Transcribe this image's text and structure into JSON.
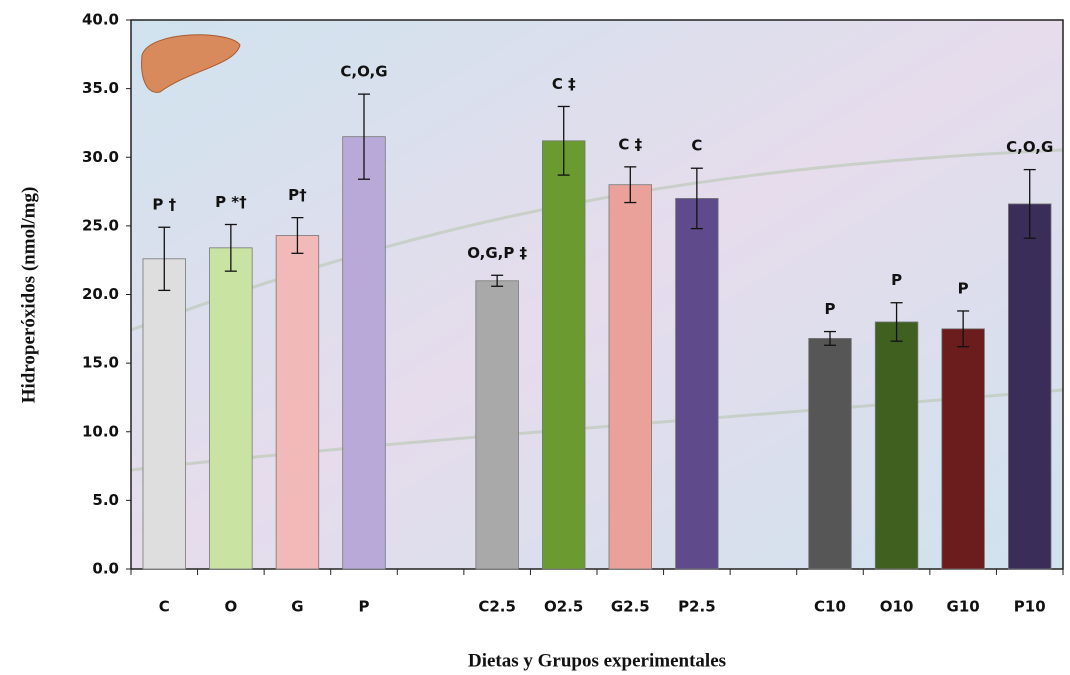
{
  "chart_data": {
    "type": "bar",
    "y_label": "Hidroperóxidos (nmol/mg)",
    "x_label": "Dietas y Grupos experimentales",
    "categories": [
      "C",
      "O",
      "G",
      "P",
      null,
      "C2.5",
      "O2.5",
      "G2.5",
      "P2.5",
      null,
      "C10",
      "O10",
      "G10",
      "P10"
    ],
    "values": [
      22.6,
      23.4,
      24.3,
      31.5,
      null,
      21.0,
      31.2,
      28.0,
      27.0,
      null,
      16.8,
      18.0,
      17.5,
      26.6
    ],
    "errors": [
      2.3,
      1.7,
      1.3,
      3.1,
      null,
      0.4,
      2.5,
      1.3,
      2.2,
      null,
      0.5,
      1.4,
      1.3,
      2.5
    ],
    "annotations": [
      "P †",
      "P *†",
      "P†",
      "C,O,G",
      null,
      "O,G,P ‡",
      "C ‡",
      "C ‡",
      "C",
      null,
      "P",
      "P",
      "P",
      "C,O,G"
    ],
    "colors": [
      "#dedede",
      "#c9e4a2",
      "#f2b9b9",
      "#b9a9d9",
      null,
      "#a9a9a9",
      "#6b9a31",
      "#e9a199",
      "#5f4a8b",
      null,
      "#565656",
      "#40601f",
      "#6b1d1d",
      "#3a2e59"
    ],
    "ylim": [
      0,
      40
    ],
    "yticks": [
      {
        "value": 0,
        "label": "0.0"
      },
      {
        "value": 5,
        "label": "5.0"
      },
      {
        "value": 10,
        "label": "10.0"
      },
      {
        "value": 15,
        "label": "15.0"
      },
      {
        "value": 20,
        "label": "20.0"
      },
      {
        "value": 25,
        "label": "25.0"
      },
      {
        "value": 30,
        "label": "30.0"
      },
      {
        "value": 35,
        "label": "35.0"
      },
      {
        "value": 40,
        "label": "40.0"
      }
    ],
    "grid": false
  }
}
